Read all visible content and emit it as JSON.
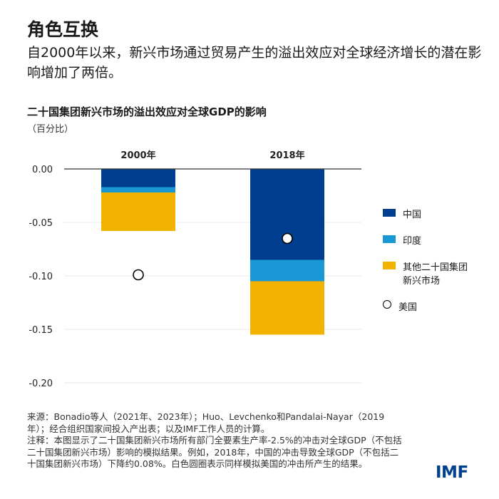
{
  "header": {
    "title": "角色互换",
    "subtitle": "自2000年以来，新兴市场通过贸易产生的溢出效应对全球经济增长的潜在影响增加了两倍。"
  },
  "chart_data": {
    "type": "bar",
    "stacked": true,
    "title": "二十国集团新兴市场的溢出效应对全球GDP的影响",
    "ylabel": "（百分比）",
    "categories": [
      "2000年",
      "2018年"
    ],
    "ylim": [
      -0.2,
      0.0
    ],
    "yticks": [
      0.0,
      -0.05,
      -0.1,
      -0.15,
      -0.2
    ],
    "ytick_labels": [
      "0.00",
      "-0.05",
      "-0.10",
      "-0.15",
      "-0.20"
    ],
    "grid": true,
    "legend_placement": "right",
    "series": [
      {
        "name": "中国",
        "color": "#003f8f",
        "values": [
          -0.017,
          -0.085
        ]
      },
      {
        "name": "印度",
        "color": "#1a98d6",
        "values": [
          -0.005,
          -0.02
        ]
      },
      {
        "name": "其他二十国集团新兴市场",
        "color": "#f2b200",
        "values": [
          -0.036,
          -0.05
        ]
      }
    ],
    "markers": {
      "name": "美国",
      "type": "circle",
      "values": [
        -0.099,
        -0.065
      ]
    }
  },
  "legend": {
    "items": [
      "中国",
      "印度",
      "其他二十国集团\n新兴市场",
      "美国"
    ]
  },
  "notes": {
    "source": "来源：Bonadio等人（2021年、2023年）；Huo、Levchenko和Pandalai-Nayar（2019年）；经合组织国家间投入产出表；以及IMF工作人员的计算。",
    "note": "注释：本图显示了二十国集团新兴市场所有部门全要素生产率-2.5%的冲击对全球GDP（不包括二十国集团新兴市场）影响的模拟结果。例如，2018年，中国的冲击导致全球GDP（不包括二十国集团新兴市场）下降约0.08%。白色圆圈表示同样模拟美国的冲击所产生的结果。"
  },
  "logo": "IMF"
}
